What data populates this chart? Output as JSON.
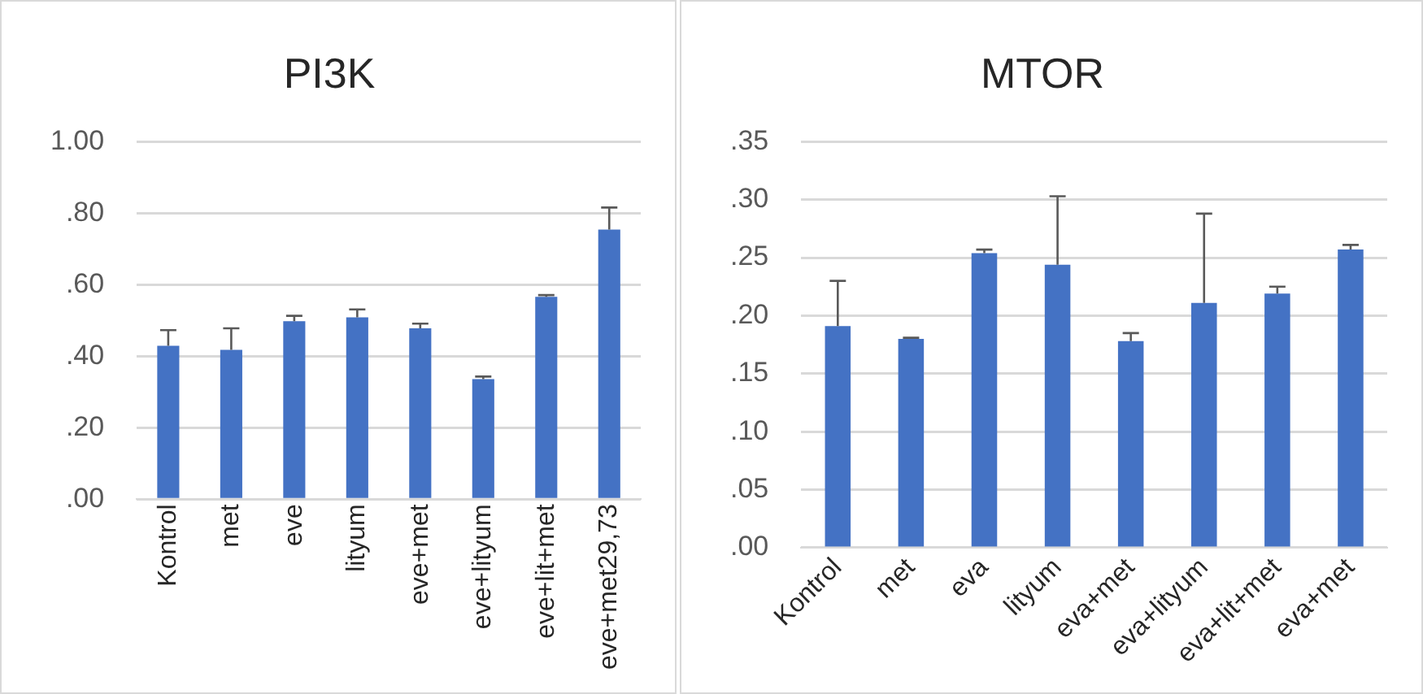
{
  "chart_data": [
    {
      "type": "bar",
      "title": "PI3K",
      "categories": [
        "Kontrol",
        "met",
        "eve",
        "lityum",
        "eve+met",
        "eve+lityum",
        "eve+lit+met",
        "eve+met29,73"
      ],
      "values": [
        0.429,
        0.418,
        0.498,
        0.509,
        0.478,
        0.336,
        0.566,
        0.754
      ],
      "errors": [
        [
          0.429,
          0.473
        ],
        [
          0.418,
          0.478
        ],
        [
          0.498,
          0.513
        ],
        [
          0.509,
          0.531
        ],
        [
          0.478,
          0.491
        ],
        [
          0.336,
          0.343
        ],
        [
          0.566,
          0.571
        ],
        [
          0.754,
          0.816
        ]
      ],
      "color": "#4472c4",
      "ylim": [
        0,
        1
      ],
      "yticks": [
        {
          "value": 0,
          "label": ".00"
        },
        {
          "value": 0.2,
          "label": ".20"
        },
        {
          "value": 0.4,
          "label": ".40"
        },
        {
          "value": 0.6,
          "label": ".60"
        },
        {
          "value": 0.8,
          "label": ".80"
        },
        {
          "value": 1,
          "label": "1.00"
        }
      ],
      "grid": "y"
    },
    {
      "type": "bar",
      "title": "MTOR",
      "categories": [
        "Kontrol",
        "met",
        "eva",
        "lityum",
        "eva+met",
        "eva+lityum",
        "eva+lit+met",
        "eva+met"
      ],
      "values": [
        0.191,
        0.18,
        0.254,
        0.244,
        0.178,
        0.211,
        0.219,
        0.257
      ],
      "errors": [
        [
          0.191,
          0.23
        ],
        [
          0.18,
          0.181
        ],
        [
          0.254,
          0.257
        ],
        [
          0.244,
          0.303
        ],
        [
          0.178,
          0.185
        ],
        [
          0.211,
          0.288
        ],
        [
          0.219,
          0.225
        ],
        [
          0.257,
          0.261
        ]
      ],
      "color": "#4472c4",
      "ylim": [
        0,
        0.35
      ],
      "yticks": [
        {
          "value": 0,
          "label": ".00"
        },
        {
          "value": 0.05,
          "label": ".05"
        },
        {
          "value": 0.1,
          "label": ".10"
        },
        {
          "value": 0.15,
          "label": ".15"
        },
        {
          "value": 0.2,
          "label": ".20"
        },
        {
          "value": 0.25,
          "label": ".25"
        },
        {
          "value": 0.3,
          "label": ".30"
        },
        {
          "value": 0.35,
          "label": ".35"
        }
      ],
      "grid": "y"
    }
  ]
}
